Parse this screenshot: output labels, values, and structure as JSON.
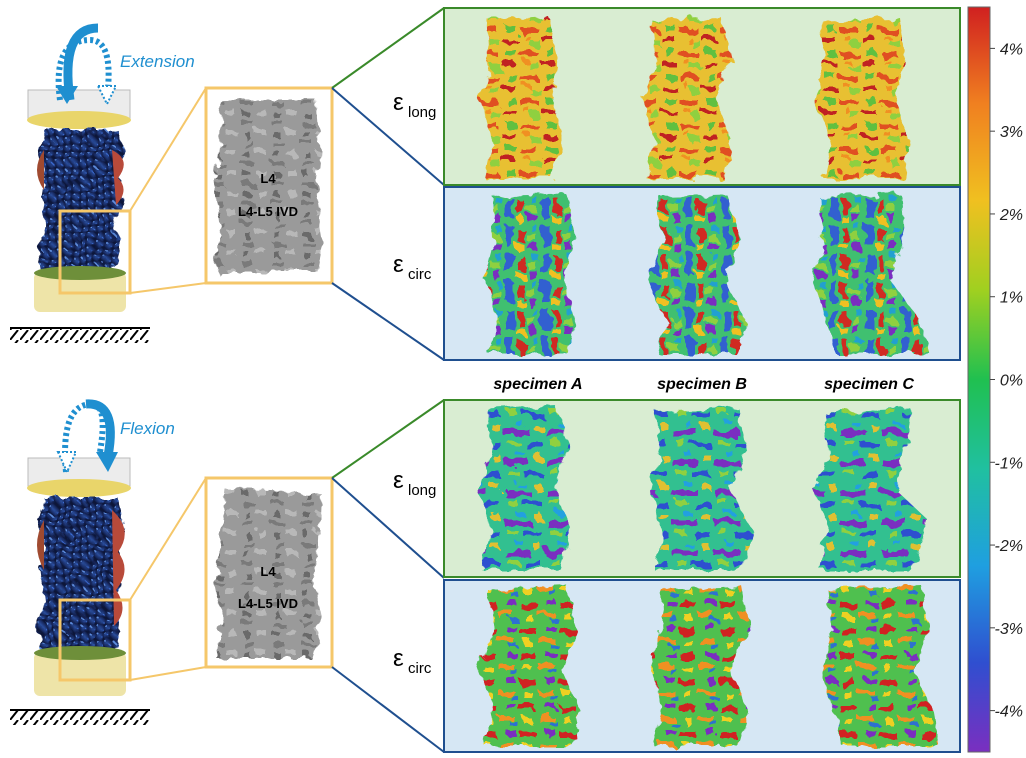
{
  "motions": {
    "top": "Extension",
    "bottom": "Flexion"
  },
  "specimens": [
    "specimen A",
    "specimen B",
    "specimen C"
  ],
  "photo_labels": {
    "level": "L4",
    "disc": "L4-L5 IVD"
  },
  "strain_labels": {
    "long": {
      "symbol": "ε",
      "subscript": "long"
    },
    "circ": {
      "symbol": "ε",
      "subscript": "circ"
    }
  },
  "colorbar": {
    "ticks": [
      "4%",
      "3%",
      "2%",
      "1%",
      "0%",
      "-1%",
      "-2%",
      "-3%",
      "-4%"
    ],
    "range": [
      -4.5,
      4.5
    ],
    "stops": [
      "#7a2fc0",
      "#2f4fd0",
      "#1f9fe0",
      "#20c0a0",
      "#20c050",
      "#a0d020",
      "#f0c020",
      "#f08020",
      "#d02020"
    ]
  },
  "colors": {
    "panel_long_bg": "#d9edd2",
    "panel_long_border": "#3a8a2a",
    "panel_circ_bg": "#d6e7f4",
    "panel_circ_border": "#1f4f8f",
    "motion_arrow": "#1f8fd0",
    "zoom_box": "#f5c76a"
  }
}
